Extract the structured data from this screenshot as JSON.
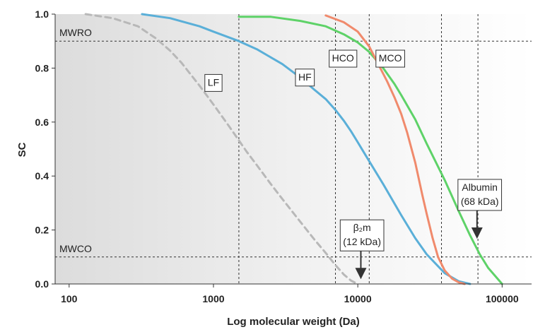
{
  "chart_data": {
    "type": "line",
    "xlabel": "Log molecular weight (Da)",
    "ylabel": "SC",
    "xscale": "log",
    "xlim": [
      80,
      160000
    ],
    "ylim": [
      0.0,
      1.0
    ],
    "x_ticks": [
      100,
      1000,
      10000,
      100000
    ],
    "x_tick_labels": [
      "100",
      "1000",
      "10000",
      "100000"
    ],
    "y_ticks": [
      0.0,
      0.2,
      0.4,
      0.6,
      0.8,
      1.0
    ],
    "y_tick_labels": [
      "0.0",
      "0.2",
      "0.4",
      "0.6",
      "0.8",
      "1.0"
    ],
    "reference_lines": {
      "horizontal": [
        {
          "label": "MWRO",
          "y": 0.9
        },
        {
          "label": "MWCO",
          "y": 0.1
        }
      ],
      "vertical": [
        1500,
        7000,
        12000,
        38000,
        68000
      ]
    },
    "series": [
      {
        "name": "LF",
        "color": "#b8b8b8",
        "dashed": true,
        "x": [
          130,
          200,
          300,
          400,
          500,
          600,
          800,
          1000,
          1300,
          1700,
          2000,
          2500,
          3000,
          4000,
          5000,
          6000,
          7000,
          8000,
          9000,
          10000
        ],
        "y": [
          1.0,
          0.985,
          0.955,
          0.91,
          0.865,
          0.82,
          0.735,
          0.665,
          0.58,
          0.49,
          0.44,
          0.37,
          0.315,
          0.23,
          0.165,
          0.115,
          0.07,
          0.035,
          0.012,
          0.0
        ]
      },
      {
        "name": "HF",
        "color": "#5aafd8",
        "dashed": false,
        "x": [
          320,
          500,
          800,
          1000,
          1500,
          2000,
          3000,
          4000,
          5000,
          6000,
          7000,
          8000,
          9000,
          10000,
          12000,
          15000,
          20000,
          25000,
          30000,
          40000,
          50000,
          60000
        ],
        "y": [
          1.0,
          0.985,
          0.955,
          0.935,
          0.9,
          0.87,
          0.815,
          0.765,
          0.72,
          0.685,
          0.645,
          0.605,
          0.565,
          0.525,
          0.455,
          0.37,
          0.255,
          0.17,
          0.11,
          0.04,
          0.01,
          0.0
        ]
      },
      {
        "name": "HCO",
        "color": "#5ed268",
        "dashed": false,
        "x": [
          1500,
          2500,
          4000,
          6000,
          8000,
          10000,
          12000,
          15000,
          18000,
          20000,
          25000,
          30000,
          40000,
          50000,
          60000,
          70000,
          80000,
          100000
        ],
        "y": [
          0.99,
          0.99,
          0.975,
          0.955,
          0.925,
          0.895,
          0.86,
          0.8,
          0.74,
          0.7,
          0.61,
          0.52,
          0.385,
          0.27,
          0.18,
          0.11,
          0.06,
          0.0
        ]
      },
      {
        "name": "MCO",
        "color": "#f08a6c",
        "dashed": false,
        "x": [
          6000,
          8000,
          10000,
          12000,
          14000,
          16000,
          18000,
          20000,
          22000,
          25000,
          28000,
          30000,
          33000,
          36000,
          40000,
          45000,
          50000,
          55000
        ],
        "y": [
          0.995,
          0.97,
          0.935,
          0.88,
          0.81,
          0.75,
          0.69,
          0.63,
          0.56,
          0.45,
          0.33,
          0.26,
          0.17,
          0.1,
          0.05,
          0.02,
          0.006,
          0.0
        ]
      }
    ],
    "annotations": [
      {
        "lines": [
          "LF"
        ],
        "x": 1000,
        "y": 0.745
      },
      {
        "lines": [
          "HF"
        ],
        "x": 4300,
        "y": 0.765
      },
      {
        "lines": [
          "HCO"
        ],
        "x": 7900,
        "y": 0.835
      },
      {
        "lines": [
          "MCO"
        ],
        "x": 16800,
        "y": 0.835
      },
      {
        "lines": [
          "β₂m",
          "(12 kDa)"
        ],
        "x": 10700,
        "y": 0.18,
        "arrow_to": 10500
      },
      {
        "lines": [
          "Albumin",
          "(68 kDa)"
        ],
        "x": 70000,
        "y": 0.33,
        "arrow_to": 67000
      }
    ]
  }
}
